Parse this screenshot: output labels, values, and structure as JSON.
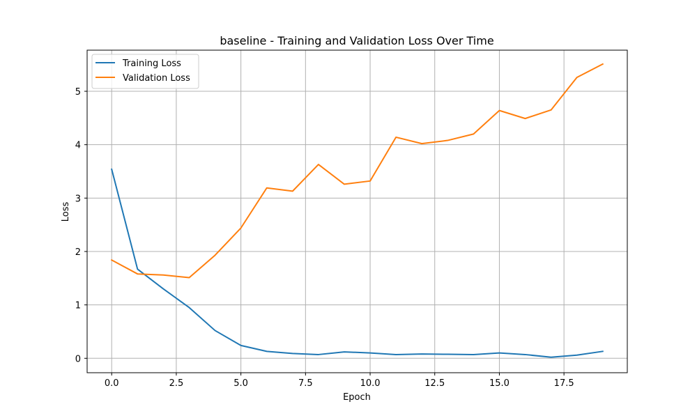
{
  "chart_data": {
    "type": "line",
    "title": "baseline - Training and Validation Loss Over Time",
    "xlabel": "Epoch",
    "ylabel": "Loss",
    "xlim": [
      -0.95,
      19.95
    ],
    "ylim": [
      -0.27,
      5.77
    ],
    "xticks": [
      0.0,
      2.5,
      5.0,
      7.5,
      10.0,
      12.5,
      15.0,
      17.5
    ],
    "xtick_labels": [
      "0.0",
      "2.5",
      "5.0",
      "7.5",
      "10.0",
      "12.5",
      "15.0",
      "17.5"
    ],
    "yticks": [
      0,
      1,
      2,
      3,
      4,
      5
    ],
    "ytick_labels": [
      "0",
      "1",
      "2",
      "3",
      "4",
      "5"
    ],
    "grid": true,
    "legend_position": "top-left",
    "x": [
      0,
      1,
      2,
      3,
      4,
      5,
      6,
      7,
      8,
      9,
      10,
      11,
      12,
      13,
      14,
      15,
      16,
      17,
      18,
      19
    ],
    "series": [
      {
        "name": "Training Loss",
        "color": "#1f77b4",
        "values": [
          3.54,
          1.67,
          1.3,
          0.95,
          0.52,
          0.24,
          0.13,
          0.09,
          0.07,
          0.12,
          0.1,
          0.07,
          0.08,
          0.075,
          0.07,
          0.1,
          0.07,
          0.02,
          0.06,
          0.13
        ]
      },
      {
        "name": "Validation Loss",
        "color": "#ff7f0e",
        "values": [
          1.84,
          1.58,
          1.56,
          1.51,
          1.93,
          2.44,
          3.19,
          3.13,
          3.63,
          3.26,
          3.32,
          4.14,
          4.02,
          4.08,
          4.2,
          4.64,
          4.49,
          4.65,
          5.26,
          5.51
        ]
      }
    ]
  }
}
